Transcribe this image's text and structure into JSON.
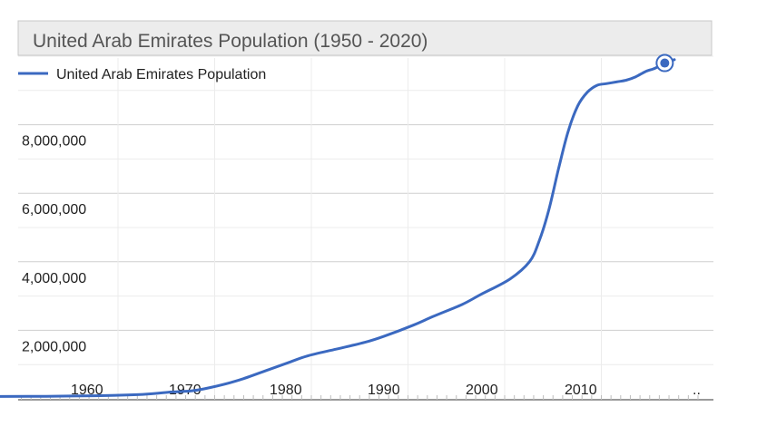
{
  "chart_data": {
    "type": "line",
    "title": "United Arab Emirates Population (1950 - 2020)",
    "xlabel": "",
    "ylabel": "",
    "x_ticks": [
      "1960",
      "1970",
      "1980",
      "1990",
      "2000",
      "2010",
      ".."
    ],
    "y_ticks": [
      "2,000,000",
      "4,000,000",
      "6,000,000",
      "8,000,000"
    ],
    "y_tick_values": [
      2000000,
      4000000,
      6000000,
      8000000
    ],
    "xlim": [
      1950,
      2020
    ],
    "ylim": [
      0,
      10000000
    ],
    "grid": true,
    "legend_position": "top-left",
    "series": [
      {
        "name": "United Arab Emirates Population",
        "color": "#3b69c0",
        "x": [
          1950,
          1955,
          1960,
          1965,
          1968,
          1970,
          1972,
          1975,
          1978,
          1980,
          1982,
          1985,
          1988,
          1990,
          1993,
          1995,
          1998,
          2000,
          2003,
          2005,
          2006,
          2007,
          2008,
          2009,
          2010,
          2011,
          2012,
          2013,
          2014,
          2015,
          2016,
          2017,
          2018,
          2019,
          2020
        ],
        "values": [
          70000,
          75000,
          90000,
          130000,
          200000,
          230000,
          330000,
          550000,
          850000,
          1050000,
          1250000,
          1450000,
          1650000,
          1830000,
          2150000,
          2400000,
          2750000,
          3050000,
          3500000,
          4000000,
          4600000,
          5500000,
          6700000,
          7800000,
          8550000,
          8950000,
          9150000,
          9200000,
          9250000,
          9300000,
          9400000,
          9550000,
          9650000,
          9800000,
          9900000
        ]
      }
    ],
    "highlight": {
      "x": 2019,
      "value": 9800000
    }
  },
  "colors": {
    "line": "#3b69c0",
    "grid": "#e6e6e6",
    "title_bg": "#ececec",
    "title_border": "#c8c8c8",
    "text": "#222222"
  }
}
